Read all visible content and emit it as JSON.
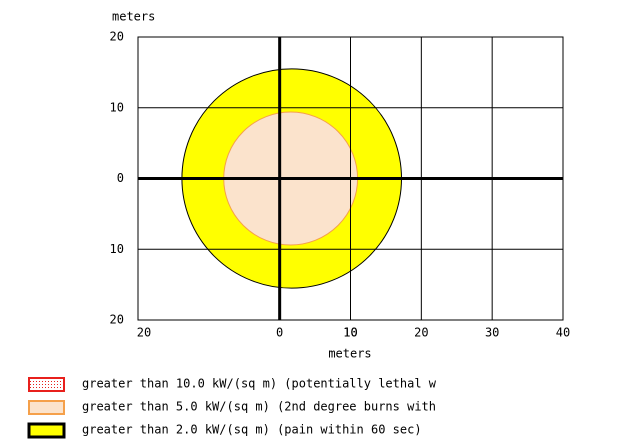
{
  "chart_data": {
    "type": "threat-zone",
    "x_label": "meters",
    "y_label": "meters",
    "xlim": [
      -20,
      40
    ],
    "xticks": [
      {
        "value": -20,
        "label": "20"
      },
      10,
      0,
      10,
      20,
      30,
      40
    ],
    "ylim": [
      -20,
      20
    ],
    "yticks": [
      20,
      10,
      0,
      {
        "value": -10,
        "label": "10"
      },
      {
        "value": -20,
        "label": "20"
      }
    ],
    "grid": true,
    "zones": [
      {
        "name": "greater than 2.0 kW/(sq m) (pain within 60 sec)",
        "color": "#ffff00",
        "stroke": "#000000",
        "xmin": -13.8,
        "xmax": 17.2,
        "halfwidth": 15.5
      },
      {
        "name": "greater than 5.0 kW/(sq m) (2nd degree burns with",
        "color": "#fbe3cc",
        "stroke": "#f5a04a",
        "xmin": -7.9,
        "xmax": 11,
        "halfwidth": 9.4
      },
      {
        "name": "greater than 10.0 kW/(sq m) (potentially lethal w",
        "color": "#ffffff",
        "stroke": "#e8201c"
      }
    ]
  }
}
